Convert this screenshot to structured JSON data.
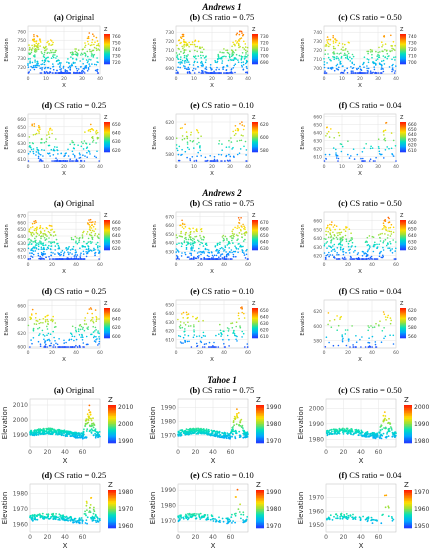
{
  "sections": [
    {
      "title": "Andrews 1",
      "panels": [
        {
          "letter": "(a)",
          "label": "Original",
          "xlim": [
            0,
            40
          ],
          "ylim": [
            712,
            766
          ],
          "yticks": [
            720,
            730,
            740,
            750,
            760
          ],
          "xticks": [
            0,
            10,
            20,
            30,
            40
          ],
          "ylabel": "Elevation",
          "xlabel": "X",
          "legend_title": "Z",
          "legend_ticks": [
            760,
            750,
            740,
            730,
            720
          ],
          "density": 1.0
        },
        {
          "letter": "(b)",
          "label": "CS ratio = 0.75",
          "xlim": [
            0,
            40
          ],
          "ylim": [
            683,
            737
          ],
          "yticks": [
            690,
            700,
            710,
            720,
            730
          ],
          "xticks": [
            0,
            10,
            20,
            30,
            40
          ],
          "ylabel": "Elevation",
          "xlabel": "X",
          "legend_title": "Z",
          "legend_ticks": [
            730,
            720,
            710,
            700,
            690
          ],
          "density": 0.75
        },
        {
          "letter": "(c)",
          "label": "CS ratio = 0.50",
          "xlim": [
            0,
            40
          ],
          "ylim": [
            693,
            747
          ],
          "yticks": [
            700,
            710,
            720,
            730,
            740
          ],
          "xticks": [
            0,
            10,
            20,
            30,
            40
          ],
          "ylabel": "Elevation",
          "xlabel": "X",
          "legend_title": "Z",
          "legend_ticks": [
            740,
            730,
            720,
            710,
            700
          ],
          "density": 0.5
        },
        {
          "letter": "(d)",
          "label": "CS ratio = 0.25",
          "xlim": [
            0,
            40
          ],
          "ylim": [
            606,
            666
          ],
          "yticks": [
            610,
            620,
            630,
            640,
            650,
            660
          ],
          "xticks": [
            0,
            10,
            20,
            30,
            40
          ],
          "ylabel": "Elevation",
          "xlabel": "X",
          "legend_title": "Z",
          "legend_ticks": [
            650,
            640,
            630,
            620
          ],
          "density": 0.25
        },
        {
          "letter": "(e)",
          "label": "CS ratio = 0.10",
          "xlim": [
            0,
            40
          ],
          "ylim": [
            570,
            630
          ],
          "yticks": [
            580,
            600,
            620
          ],
          "xticks": [
            0,
            10,
            20,
            30,
            40
          ],
          "ylabel": "Elevation",
          "xlabel": "X",
          "legend_title": "Z",
          "legend_ticks": [
            620,
            600,
            580
          ],
          "density": 0.1
        },
        {
          "letter": "(f)",
          "label": "CS ratio = 0.04",
          "xlim": [
            0,
            40
          ],
          "ylim": [
            603,
            663
          ],
          "yticks": [
            610,
            620,
            630,
            640,
            650,
            660
          ],
          "xticks": [
            0,
            10,
            20,
            30,
            40
          ],
          "ylabel": "Elevation",
          "xlabel": "X",
          "legend_title": "Z",
          "legend_ticks": [
            660,
            650,
            640,
            630,
            620,
            610
          ],
          "density": 0.04
        }
      ]
    },
    {
      "title": "Andrews 2",
      "panels": [
        {
          "letter": "(a)",
          "label": "Original",
          "xlim": [
            0,
            60
          ],
          "ylim": [
            605,
            675
          ],
          "yticks": [
            610,
            620,
            630,
            640,
            650,
            660,
            670
          ],
          "xticks": [
            0,
            20,
            40,
            60
          ],
          "ylabel": "Elevation",
          "xlabel": "X",
          "legend_title": "Z",
          "legend_ticks": [
            660,
            650,
            640,
            630,
            620
          ],
          "density": 1.0
        },
        {
          "letter": "(b)",
          "label": "CS ratio = 0.75",
          "xlim": [
            0,
            60
          ],
          "ylim": [
            620,
            675
          ],
          "yticks": [
            630,
            640,
            650,
            660,
            670
          ],
          "xticks": [
            0,
            20,
            40,
            60
          ],
          "ylabel": "Elevation",
          "xlabel": "X",
          "legend_title": "Z",
          "legend_ticks": [
            670,
            660,
            650,
            640,
            630
          ],
          "density": 0.75
        },
        {
          "letter": "(c)",
          "label": "CS ratio = 0.50",
          "xlim": [
            0,
            60
          ],
          "ylim": [
            615,
            670
          ],
          "yticks": [
            620,
            630,
            640,
            650,
            660
          ],
          "xticks": [
            0,
            20,
            40,
            60
          ],
          "ylabel": "Elevation",
          "xlabel": "X",
          "legend_title": "Z",
          "legend_ticks": [
            660,
            650,
            640,
            630,
            620
          ],
          "density": 0.5
        },
        {
          "letter": "(d)",
          "label": "CS ratio = 0.25",
          "xlim": [
            0,
            60
          ],
          "ylim": [
            598,
            668
          ],
          "yticks": [
            600,
            620,
            640,
            660
          ],
          "xticks": [
            0,
            20,
            40,
            60
          ],
          "ylabel": "Elevation",
          "xlabel": "X",
          "legend_title": "Z",
          "legend_ticks": [
            660,
            640,
            620,
            600
          ],
          "density": 0.25
        },
        {
          "letter": "(e)",
          "label": "CS ratio = 0.10",
          "xlim": [
            0,
            60
          ],
          "ylim": [
            600,
            655
          ],
          "yticks": [
            610,
            620,
            630,
            640,
            650
          ],
          "xticks": [
            0,
            20,
            40,
            60
          ],
          "ylabel": "Elevation",
          "xlabel": "X",
          "legend_title": "Z",
          "legend_ticks": [
            650,
            640,
            630,
            620,
            610
          ],
          "density": 0.1
        },
        {
          "letter": "(f)",
          "label": "CS ratio = 0.04",
          "xlim": [
            0,
            60
          ],
          "ylim": [
            570,
            635
          ],
          "yticks": [
            580,
            600,
            620
          ],
          "xticks": [
            0,
            20,
            40,
            60
          ],
          "ylabel": "Elevation",
          "xlabel": "X",
          "legend_title": "Z",
          "legend_ticks": [
            620,
            600,
            580,
            560
          ],
          "density": 0.04
        }
      ]
    },
    {
      "title": "Tahoe 1",
      "panels": [
        {
          "letter": "(a)",
          "label": "Original",
          "xlim": [
            0,
            80
          ],
          "ylim": [
            1982,
            2014
          ],
          "yticks": [
            1990,
            2000,
            2010
          ],
          "xticks": [
            0,
            20,
            40,
            60
          ],
          "ylabel": "Elevation",
          "xlabel": "X",
          "legend_title": "Z",
          "legend_ticks": [
            2010,
            2000,
            1990
          ],
          "density": 1.0
        },
        {
          "letter": "(b)",
          "label": "CS ratio = 0.75",
          "xlim": [
            0,
            80
          ],
          "ylim": [
            1962,
            1996
          ],
          "yticks": [
            1970,
            1980,
            1990
          ],
          "xticks": [
            0,
            20,
            40,
            60
          ],
          "ylabel": "Elevation",
          "xlabel": "X",
          "legend_title": "Z",
          "legend_ticks": [
            1990,
            1980,
            1970
          ],
          "density": 0.75
        },
        {
          "letter": "(c)",
          "label": "CS ratio = 0.50",
          "xlim": [
            0,
            80
          ],
          "ylim": [
            1975,
            2006
          ],
          "yticks": [
            1980,
            1990,
            2000
          ],
          "xticks": [
            0,
            20,
            40,
            60
          ],
          "ylabel": "Elevation",
          "xlabel": "X",
          "legend_title": "Z",
          "legend_ticks": [
            2000,
            1990,
            1980
          ],
          "density": 0.5
        },
        {
          "letter": "(d)",
          "label": "CS ratio = 0.25",
          "xlim": [
            0,
            80
          ],
          "ylim": [
            1955,
            1986
          ],
          "yticks": [
            1960,
            1970,
            1980
          ],
          "xticks": [
            0,
            20,
            40,
            60
          ],
          "ylabel": "Elevation",
          "xlabel": "X",
          "legend_title": "Z",
          "legend_ticks": [
            1980,
            1970,
            1960
          ],
          "density": 0.25
        },
        {
          "letter": "(e)",
          "label": "CS ratio = 0.10",
          "xlim": [
            0,
            80
          ],
          "ylim": [
            1963,
            1994
          ],
          "yticks": [
            1970,
            1980,
            1990
          ],
          "xticks": [
            0,
            20,
            40,
            60
          ],
          "ylabel": "Elevation",
          "xlabel": "X",
          "legend_title": "Z",
          "legend_ticks": [
            1990,
            1980,
            1970
          ],
          "density": 0.1
        },
        {
          "letter": "(f)",
          "label": "CS ratio = 0.04",
          "xlim": [
            0,
            80
          ],
          "ylim": [
            1945,
            1980
          ],
          "yticks": [
            1950,
            1960,
            1970
          ],
          "xticks": [
            0,
            20,
            40,
            60
          ],
          "ylabel": "Elevation",
          "xlabel": "X",
          "legend_title": "Z",
          "legend_ticks": [
            1970,
            1960,
            1950
          ],
          "density": 0.04
        }
      ]
    }
  ],
  "chart_data": {
    "type": "scatter",
    "panel_count": 18,
    "colorscale": [
      "#1f3fff",
      "#00a8ff",
      "#00e0c0",
      "#8fe040",
      "#ffe000",
      "#ff8000",
      "#ff2000"
    ],
    "grid": true,
    "legend_placement": "right"
  }
}
